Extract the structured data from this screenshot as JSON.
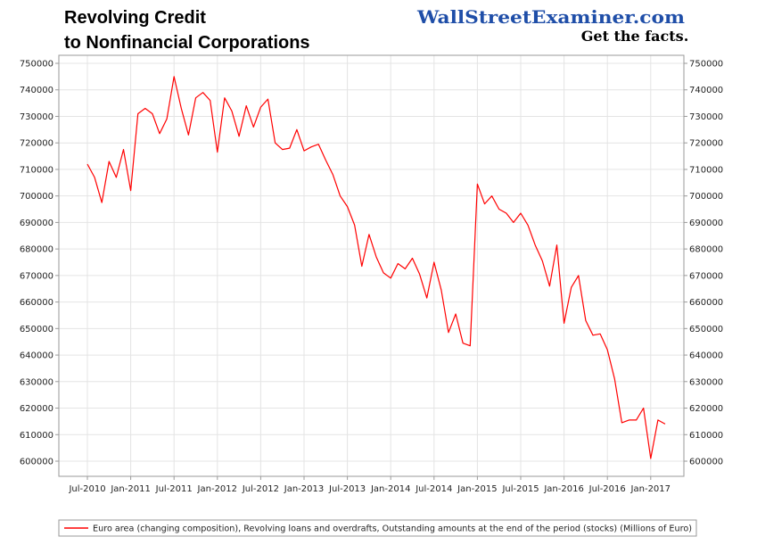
{
  "colors": {
    "series": "#ff0000",
    "brand": "#1f4ea8",
    "grid": "#e4e4e4",
    "axis": "#9a9a9a"
  },
  "header": {
    "title_line1": "Revolving Credit",
    "title_line2": "to Nonfinancial Corporations",
    "brand": "WallStreetExaminer.com",
    "tagline": "Get the facts."
  },
  "chart_data": {
    "type": "line",
    "x_start": "Jul-2010",
    "x_tick_labels": [
      "Jul-2010",
      "Jan-2011",
      "Jul-2011",
      "Jan-2012",
      "Jul-2012",
      "Jan-2013",
      "Jul-2013",
      "Jan-2014",
      "Jul-2014",
      "Jan-2015",
      "Jul-2015",
      "Jan-2016",
      "Jul-2016",
      "Jan-2017"
    ],
    "y_tick_labels": [
      "750000",
      "740000",
      "730000",
      "720000",
      "710000",
      "700000",
      "690000",
      "680000",
      "670000",
      "660000",
      "650000",
      "640000",
      "630000",
      "620000",
      "610000",
      "600000"
    ],
    "ylim": [
      600000,
      750000
    ],
    "grid": true,
    "legend_position": "bottom",
    "series": [
      {
        "name": "Euro area (changing composition), Revolving loans and overdrafts, Outstanding amounts at the end of the period (stocks) (Millions of Euro)",
        "values": [
          712000,
          707000,
          697500,
          713000,
          707000,
          717500,
          702000,
          731000,
          733000,
          731000,
          723500,
          729000,
          745000,
          733000,
          723000,
          737000,
          739000,
          736000,
          716500,
          737000,
          732000,
          722500,
          734000,
          726000,
          733500,
          736500,
          720000,
          717500,
          718000,
          725000,
          717000,
          718500,
          719500,
          713500,
          708000,
          700000,
          696000,
          689000,
          673500,
          685500,
          677000,
          671000,
          669000,
          674500,
          672500,
          676500,
          670500,
          661500,
          675000,
          664500,
          648500,
          655500,
          644500,
          643500,
          704500,
          697000,
          700000,
          695000,
          693500,
          690000,
          693500,
          689000,
          681500,
          675500,
          666000,
          681500,
          652000,
          665500,
          670000,
          653000,
          647500,
          648000,
          642000,
          631000,
          614500,
          615500,
          615500,
          620000,
          601000,
          615500,
          614000
        ]
      }
    ]
  }
}
